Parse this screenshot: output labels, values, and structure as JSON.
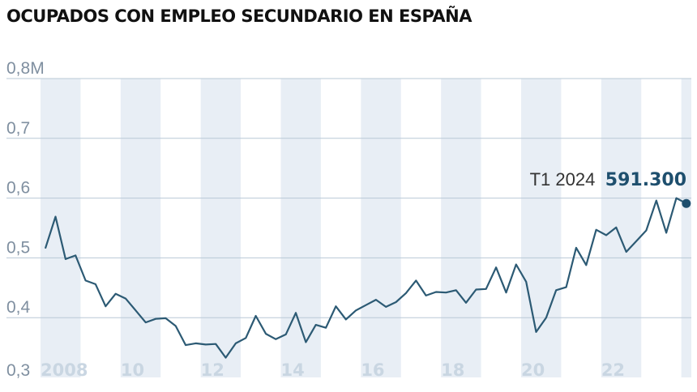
{
  "title": "OCUPADOS CON EMPLEO SECUNDARIO EN ESPAÑA",
  "colors": {
    "line": "#2c5a74",
    "band": "#e8eef5",
    "grid": "#b9c8d6",
    "ytick": "#7f8fa0",
    "xtick": "#c9d6e2",
    "highlight": "#1e4f6e"
  },
  "chart_data": {
    "type": "line",
    "title": "OCUPADOS CON EMPLEO SECUNDARIO EN ESPAÑA",
    "xlabel": "",
    "ylabel": "",
    "ylim": [
      0.3,
      0.8
    ],
    "xlim": [
      2008,
      2024.25
    ],
    "grid": true,
    "yticks": [
      {
        "value": 0.8,
        "label": "0,8M"
      },
      {
        "value": 0.7,
        "label": "0,7"
      },
      {
        "value": 0.6,
        "label": "0,6"
      },
      {
        "value": 0.5,
        "label": "0,5"
      },
      {
        "value": 0.4,
        "label": "0,4"
      },
      {
        "value": 0.3,
        "label": "0,3"
      }
    ],
    "xticks": [
      {
        "value": 2008,
        "label": "2008"
      },
      {
        "value": 2010,
        "label": "10"
      },
      {
        "value": 2012,
        "label": "12"
      },
      {
        "value": 2014,
        "label": "14"
      },
      {
        "value": 2016,
        "label": "16"
      },
      {
        "value": 2018,
        "label": "18"
      },
      {
        "value": 2020,
        "label": "20"
      },
      {
        "value": 2022,
        "label": "22"
      }
    ],
    "shaded_years": [
      2008,
      2010,
      2012,
      2014,
      2016,
      2018,
      2020,
      2022,
      2024
    ],
    "series": [
      {
        "x": [
          "2008 T1",
          "2008 T2",
          "2008 T3",
          "2008 T4",
          "2009 T1",
          "2009 T2",
          "2009 T3",
          "2009 T4",
          "2010 T1",
          "2010 T2",
          "2010 T3",
          "2010 T4",
          "2011 T1",
          "2011 T2",
          "2011 T3",
          "2011 T4",
          "2012 T1",
          "2012 T2",
          "2012 T3",
          "2012 T4",
          "2013 T1",
          "2013 T2",
          "2013 T3",
          "2013 T4",
          "2014 T1",
          "2014 T2",
          "2014 T3",
          "2014 T4",
          "2015 T1",
          "2015 T2",
          "2015 T3",
          "2015 T4",
          "2016 T1",
          "2016 T2",
          "2016 T3",
          "2016 T4",
          "2017 T1",
          "2017 T2",
          "2017 T3",
          "2017 T4",
          "2018 T1",
          "2018 T2",
          "2018 T3",
          "2018 T4",
          "2019 T1",
          "2019 T2",
          "2019 T3",
          "2019 T4",
          "2020 T1",
          "2020 T2",
          "2020 T3",
          "2020 T4",
          "2021 T1",
          "2021 T2",
          "2021 T3",
          "2021 T4",
          "2022 T1",
          "2022 T2",
          "2022 T3",
          "2022 T4",
          "2023 T1",
          "2023 T2",
          "2023 T3",
          "2023 T4",
          "2024 T1"
        ],
        "values": [
          0.517,
          0.569,
          0.498,
          0.504,
          0.462,
          0.456,
          0.419,
          0.44,
          0.432,
          0.412,
          0.392,
          0.398,
          0.399,
          0.386,
          0.354,
          0.357,
          0.355,
          0.356,
          0.333,
          0.357,
          0.366,
          0.403,
          0.373,
          0.364,
          0.372,
          0.408,
          0.359,
          0.388,
          0.383,
          0.419,
          0.397,
          0.412,
          0.421,
          0.43,
          0.418,
          0.426,
          0.441,
          0.462,
          0.437,
          0.443,
          0.442,
          0.446,
          0.425,
          0.447,
          0.448,
          0.484,
          0.442,
          0.489,
          0.46,
          0.376,
          0.4,
          0.446,
          0.451,
          0.517,
          0.488,
          0.547,
          0.538,
          0.551,
          0.51,
          0.528,
          0.546,
          0.596,
          0.542,
          0.6,
          0.591
        ]
      }
    ],
    "annotation": {
      "label": "T1 2024",
      "value": "591.300"
    }
  }
}
